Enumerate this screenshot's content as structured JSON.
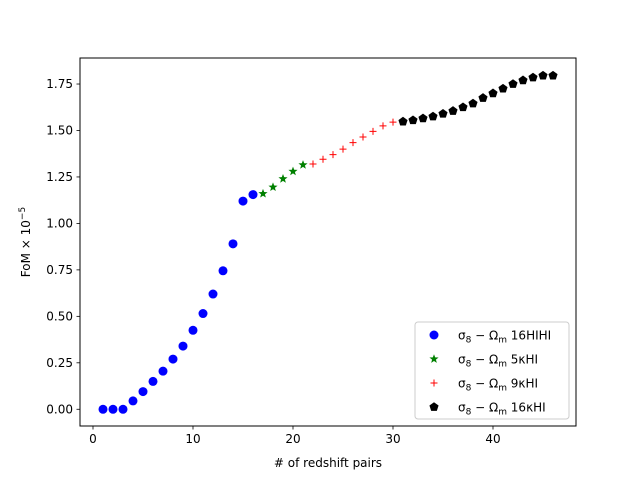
{
  "chart_data": {
    "type": "scatter",
    "xlabel": "# of redshift pairs",
    "ylabel": "FoM × 10",
    "ylabel_exponent": "−5",
    "xlim": [
      -1.3,
      48.3
    ],
    "ylim": [
      -0.09,
      1.89
    ],
    "x_ticks": [
      0,
      10,
      20,
      30,
      40
    ],
    "x_tick_labels": [
      "0",
      "10",
      "20",
      "30",
      "40"
    ],
    "y_ticks": [
      0.0,
      0.25,
      0.5,
      0.75,
      1.0,
      1.25,
      1.5,
      1.75
    ],
    "y_tick_labels": [
      "0.00",
      "0.25",
      "0.50",
      "0.75",
      "1.00",
      "1.25",
      "1.50",
      "1.75"
    ],
    "grid": false,
    "legend_position": "lower-right",
    "series": [
      {
        "name_prefix": "σ",
        "name_sub1": "8",
        "name_mid": " − Ω",
        "name_sub2": "m",
        "name_suffix": " 16HIHI",
        "marker": "circle",
        "color": "#0000ff",
        "x": [
          1,
          2,
          3,
          4,
          5,
          6,
          7,
          8,
          9,
          10,
          11,
          12,
          13,
          14,
          15,
          16
        ],
        "y": [
          0.0,
          0.0,
          0.0,
          0.045,
          0.095,
          0.15,
          0.205,
          0.27,
          0.34,
          0.425,
          0.515,
          0.62,
          0.745,
          0.89,
          1.12,
          1.155
        ]
      },
      {
        "name_prefix": "σ",
        "name_sub1": "8",
        "name_mid": " − Ω",
        "name_sub2": "m",
        "name_suffix": " 5κHI",
        "marker": "star",
        "color": "#008000",
        "x": [
          17,
          18,
          19,
          20,
          21
        ],
        "y": [
          1.16,
          1.195,
          1.24,
          1.28,
          1.315
        ]
      },
      {
        "name_prefix": "σ",
        "name_sub1": "8",
        "name_mid": " − Ω",
        "name_sub2": "m",
        "name_suffix": " 9κHI",
        "marker": "plus",
        "color": "#ff0000",
        "x": [
          22,
          23,
          24,
          25,
          26,
          27,
          28,
          29,
          30
        ],
        "y": [
          1.32,
          1.345,
          1.37,
          1.4,
          1.435,
          1.465,
          1.495,
          1.525,
          1.545
        ]
      },
      {
        "name_prefix": "σ",
        "name_sub1": "8",
        "name_mid": " − Ω",
        "name_sub2": "m",
        "name_suffix": " 16κHI",
        "marker": "pentagon",
        "color": "#000000",
        "x": [
          31,
          32,
          33,
          34,
          35,
          36,
          37,
          38,
          39,
          40,
          41,
          42,
          43,
          44,
          45,
          46
        ],
        "y": [
          1.548,
          1.555,
          1.565,
          1.575,
          1.59,
          1.605,
          1.625,
          1.645,
          1.675,
          1.7,
          1.725,
          1.75,
          1.77,
          1.785,
          1.795,
          1.795
        ]
      }
    ]
  }
}
